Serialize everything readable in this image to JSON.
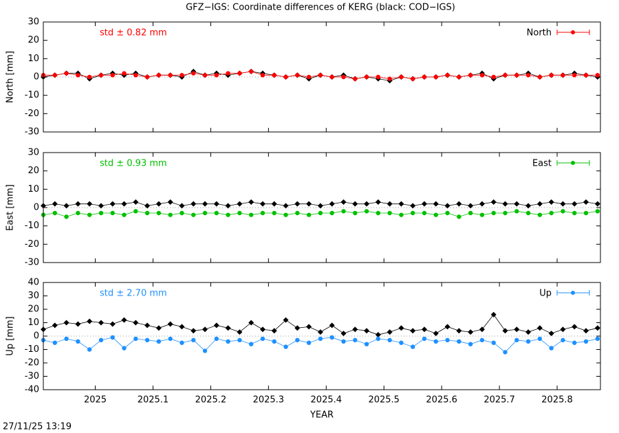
{
  "title": "GFZ−IGS: Coordinate differences of KERG (black: COD−IGS)",
  "footer": "27/11/25 13:19",
  "chart_data": [
    {
      "type": "line",
      "ylabel": "North [mm]",
      "annotation": "std ± 0.82 mm",
      "x": [
        2024.91,
        2024.93,
        2024.95,
        2024.97,
        2024.99,
        2025.01,
        2025.03,
        2025.05,
        2025.07,
        2025.09,
        2025.11,
        2025.13,
        2025.15,
        2025.17,
        2025.19,
        2025.21,
        2025.23,
        2025.25,
        2025.27,
        2025.29,
        2025.31,
        2025.33,
        2025.35,
        2025.37,
        2025.39,
        2025.41,
        2025.43,
        2025.45,
        2025.47,
        2025.49,
        2025.51,
        2025.53,
        2025.55,
        2025.57,
        2025.59,
        2025.61,
        2025.63,
        2025.65,
        2025.67,
        2025.69,
        2025.71,
        2025.73,
        2025.75,
        2025.77,
        2025.79,
        2025.81,
        2025.83,
        2025.85,
        2025.87
      ],
      "series": [
        {
          "name": "North",
          "color": "#ff0000",
          "values": [
            1,
            1,
            2,
            1,
            0,
            1,
            1,
            2,
            1,
            0,
            1,
            1,
            1,
            2,
            1,
            1,
            2,
            2,
            3,
            1,
            1,
            0,
            1,
            0,
            1,
            0,
            0,
            -1,
            0,
            0,
            -1,
            0,
            -1,
            0,
            0,
            1,
            0,
            1,
            1,
            0,
            1,
            1,
            1,
            0,
            1,
            1,
            1,
            1,
            1
          ]
        },
        {
          "color": "#000000",
          "values": [
            0,
            1,
            2,
            2,
            -1,
            1,
            2,
            1,
            2,
            0,
            1,
            1,
            0,
            3,
            1,
            2,
            1,
            2,
            3,
            2,
            1,
            0,
            1,
            -1,
            1,
            0,
            1,
            -1,
            0,
            -1,
            -2,
            0,
            -1,
            0,
            0,
            1,
            0,
            1,
            2,
            -1,
            1,
            1,
            2,
            0,
            1,
            1,
            2,
            1,
            0
          ]
        }
      ],
      "xlim": [
        2024.91,
        2025.875
      ],
      "xticks": [
        2025,
        2025.1,
        2025.2,
        2025.3,
        2025.4,
        2025.5,
        2025.6,
        2025.7,
        2025.8
      ],
      "ylim": [
        -30,
        30
      ],
      "yticks": [
        -30,
        -20,
        -10,
        0,
        10,
        20,
        30
      ]
    },
    {
      "type": "line",
      "ylabel": "East [mm]",
      "annotation": "std ± 0.93 mm",
      "x": [
        2024.91,
        2024.93,
        2024.95,
        2024.97,
        2024.99,
        2025.01,
        2025.03,
        2025.05,
        2025.07,
        2025.09,
        2025.11,
        2025.13,
        2025.15,
        2025.17,
        2025.19,
        2025.21,
        2025.23,
        2025.25,
        2025.27,
        2025.29,
        2025.31,
        2025.33,
        2025.35,
        2025.37,
        2025.39,
        2025.41,
        2025.43,
        2025.45,
        2025.47,
        2025.49,
        2025.51,
        2025.53,
        2025.55,
        2025.57,
        2025.59,
        2025.61,
        2025.63,
        2025.65,
        2025.67,
        2025.69,
        2025.71,
        2025.73,
        2025.75,
        2025.77,
        2025.79,
        2025.81,
        2025.83,
        2025.85,
        2025.87
      ],
      "series": [
        {
          "name": "East",
          "color": "#00c000",
          "values": [
            -4,
            -3,
            -5,
            -3,
            -4,
            -3,
            -3,
            -4,
            -2,
            -3,
            -3,
            -4,
            -3,
            -4,
            -3,
            -3,
            -4,
            -3,
            -4,
            -3,
            -3,
            -4,
            -3,
            -4,
            -3,
            -3,
            -2,
            -3,
            -2,
            -3,
            -3,
            -4,
            -3,
            -3,
            -4,
            -3,
            -5,
            -3,
            -4,
            -3,
            -3,
            -2,
            -3,
            -4,
            -3,
            -2,
            -3,
            -3,
            -2
          ]
        },
        {
          "color": "#000000",
          "values": [
            1,
            2,
            1,
            2,
            2,
            1,
            2,
            2,
            3,
            1,
            2,
            3,
            1,
            2,
            2,
            2,
            1,
            2,
            3,
            2,
            2,
            1,
            2,
            2,
            1,
            2,
            3,
            2,
            2,
            3,
            2,
            2,
            1,
            2,
            2,
            1,
            2,
            1,
            2,
            3,
            2,
            2,
            1,
            2,
            3,
            2,
            2,
            3,
            2
          ]
        }
      ],
      "xlim": [
        2024.91,
        2025.875
      ],
      "xticks": [
        2025,
        2025.1,
        2025.2,
        2025.3,
        2025.4,
        2025.5,
        2025.6,
        2025.7,
        2025.8
      ],
      "ylim": [
        -30,
        30
      ],
      "yticks": [
        -30,
        -20,
        -10,
        0,
        10,
        20,
        30
      ]
    },
    {
      "type": "line",
      "ylabel": "Up [mm]",
      "annotation": "std ± 2.70 mm",
      "xlabel": "YEAR",
      "x": [
        2024.91,
        2024.93,
        2024.95,
        2024.97,
        2024.99,
        2025.01,
        2025.03,
        2025.05,
        2025.07,
        2025.09,
        2025.11,
        2025.13,
        2025.15,
        2025.17,
        2025.19,
        2025.21,
        2025.23,
        2025.25,
        2025.27,
        2025.29,
        2025.31,
        2025.33,
        2025.35,
        2025.37,
        2025.39,
        2025.41,
        2025.43,
        2025.45,
        2025.47,
        2025.49,
        2025.51,
        2025.53,
        2025.55,
        2025.57,
        2025.59,
        2025.61,
        2025.63,
        2025.65,
        2025.67,
        2025.69,
        2025.71,
        2025.73,
        2025.75,
        2025.77,
        2025.79,
        2025.81,
        2025.83,
        2025.85,
        2025.87
      ],
      "series": [
        {
          "name": "Up",
          "color": "#1e90ff",
          "values": [
            -3,
            -5,
            -2,
            -4,
            -10,
            -3,
            -1,
            -9,
            -2,
            -3,
            -4,
            -2,
            -5,
            -3,
            -11,
            -2,
            -4,
            -3,
            -6,
            -2,
            -4,
            -8,
            -3,
            -5,
            -2,
            -1,
            -4,
            -3,
            -6,
            -2,
            -3,
            -5,
            -8,
            -2,
            -4,
            -3,
            -4,
            -6,
            -3,
            -5,
            -12,
            -3,
            -4,
            -2,
            -9,
            -3,
            -5,
            -4,
            -2
          ]
        },
        {
          "color": "#000000",
          "values": [
            5,
            8,
            10,
            9,
            11,
            10,
            9,
            12,
            10,
            8,
            6,
            9,
            7,
            4,
            5,
            8,
            6,
            3,
            10,
            5,
            4,
            12,
            6,
            7,
            3,
            8,
            2,
            5,
            4,
            1,
            3,
            6,
            4,
            5,
            2,
            7,
            4,
            3,
            5,
            16,
            4,
            5,
            3,
            6,
            2,
            5,
            7,
            4,
            6
          ]
        }
      ],
      "xlim": [
        2024.91,
        2025.875
      ],
      "xticks": [
        2025,
        2025.1,
        2025.2,
        2025.3,
        2025.4,
        2025.5,
        2025.6,
        2025.7,
        2025.8
      ],
      "ylim": [
        -40,
        40
      ],
      "yticks": [
        -40,
        -30,
        -20,
        -10,
        0,
        10,
        20,
        30,
        40
      ]
    }
  ]
}
